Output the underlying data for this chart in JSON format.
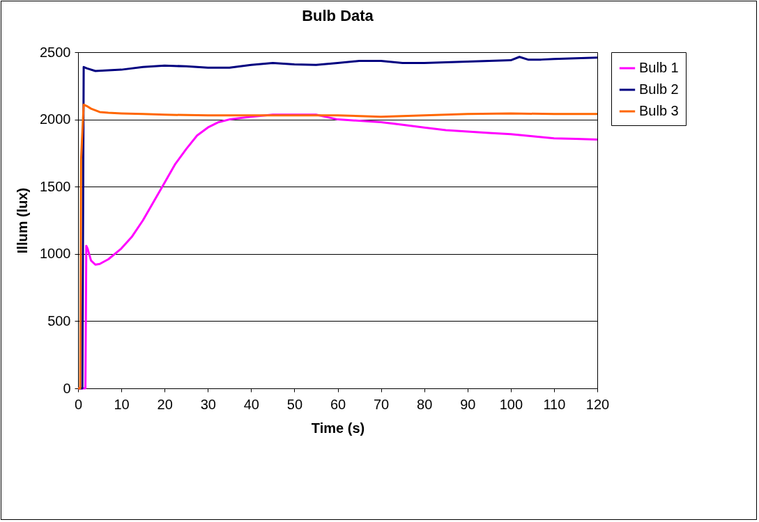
{
  "chart_data": {
    "type": "line",
    "title": "Bulb Data",
    "xlabel": "Time (s)",
    "ylabel": "Illum (lux)",
    "xlim": [
      0,
      120
    ],
    "xticks": [
      0,
      10,
      20,
      30,
      40,
      50,
      60,
      70,
      80,
      90,
      100,
      110,
      120
    ],
    "ylim": [
      0,
      2500
    ],
    "yticks": [
      0,
      500,
      1000,
      1500,
      2000,
      2500
    ],
    "grid": "y",
    "legend": "right",
    "marker": "none",
    "line_style": "solid",
    "series": [
      {
        "name": "Bulb 1",
        "color": "#ff00ff",
        "x": [
          0,
          1.7,
          1.9,
          2.2,
          3,
          4,
          5,
          7,
          10,
          12.5,
          15,
          17.5,
          20,
          22.5,
          25,
          27.5,
          30,
          32.5,
          35,
          40,
          45,
          50,
          55,
          60,
          65,
          70,
          75,
          80,
          85,
          90,
          95,
          100,
          105,
          110,
          115,
          120
        ],
        "values": [
          0,
          0,
          1060,
          1040,
          950,
          920,
          925,
          960,
          1040,
          1130,
          1250,
          1390,
          1530,
          1670,
          1780,
          1880,
          1940,
          1980,
          2000,
          2020,
          2035,
          2035,
          2035,
          2000,
          1990,
          1980,
          1960,
          1940,
          1920,
          1910,
          1900,
          1890,
          1875,
          1860,
          1855,
          1850
        ]
      },
      {
        "name": "Bulb 2",
        "color": "#000080",
        "x": [
          0,
          1.0,
          1.3,
          2,
          4,
          7,
          10,
          15,
          20,
          25,
          30,
          35,
          40,
          45,
          50,
          55,
          60,
          65,
          70,
          75,
          80,
          85,
          90,
          95,
          100,
          102,
          104,
          107,
          110,
          115,
          120
        ],
        "values": [
          0,
          0,
          2390,
          2380,
          2360,
          2365,
          2370,
          2390,
          2400,
          2395,
          2385,
          2385,
          2405,
          2420,
          2410,
          2405,
          2420,
          2435,
          2435,
          2420,
          2420,
          2425,
          2430,
          2435,
          2440,
          2465,
          2445,
          2445,
          2450,
          2455,
          2460
        ]
      },
      {
        "name": "Bulb 3",
        "color": "#ff6600",
        "x": [
          0,
          0.5,
          0.7,
          1.3,
          2,
          3,
          5,
          7,
          10,
          15,
          20,
          30,
          40,
          50,
          60,
          70,
          80,
          90,
          100,
          110,
          120
        ],
        "values": [
          0,
          0,
          1700,
          2110,
          2100,
          2080,
          2055,
          2050,
          2045,
          2040,
          2035,
          2030,
          2030,
          2030,
          2030,
          2020,
          2030,
          2040,
          2045,
          2040,
          2040
        ]
      }
    ]
  }
}
